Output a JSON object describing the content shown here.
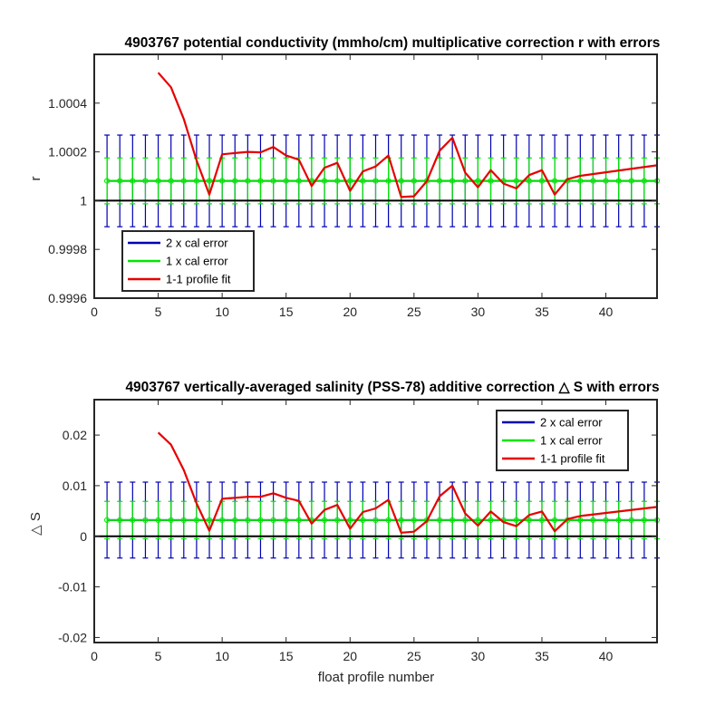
{
  "chart_data": [
    {
      "type": "line",
      "title": "4903767 potential conductivity (mmho/cm) multiplicative correction r with errors",
      "xlabel": "",
      "ylabel": "r",
      "xlim": [
        0,
        44
      ],
      "ylim": [
        0.9996,
        1.0006
      ],
      "xticks": [
        "0",
        "10",
        "15",
        "20",
        "25",
        "30",
        "35",
        "40",
        "5"
      ],
      "xtick_values": [
        0,
        10,
        15,
        20,
        25,
        30,
        35,
        40,
        5
      ],
      "yticks": [
        "0.9996",
        "0.9998",
        "1",
        "1.0002",
        "1.0004"
      ],
      "ytick_values": [
        0.9996,
        0.9998,
        1.0,
        1.0002,
        1.0004
      ],
      "grid": false,
      "legend_position": "bottom-left",
      "reference_line": 1.0,
      "calibration": {
        "profiles": [
          1,
          2,
          3,
          4,
          5,
          6,
          7,
          8,
          9,
          10,
          11,
          12,
          13,
          14,
          15,
          16,
          17,
          18,
          19,
          20,
          21,
          22,
          23,
          24,
          25,
          26,
          27,
          28,
          29,
          30,
          31,
          32,
          33,
          34,
          35,
          36,
          37,
          38,
          39,
          40,
          41,
          42,
          43,
          44
        ],
        "center": 1.000081,
        "err1": 9.4e-05,
        "err2": 0.000188
      },
      "series": [
        {
          "name": "2 x cal error",
          "color": "#0000b3",
          "role": "err2"
        },
        {
          "name": "1 x cal error",
          "color": "#00e600",
          "role": "err1"
        },
        {
          "name": "1-1 profile fit",
          "color": "#e60000",
          "x": [
            5,
            6,
            7,
            8,
            9,
            10,
            11,
            12,
            13,
            14,
            15,
            16,
            17,
            18,
            19,
            20,
            21,
            22,
            23,
            24,
            25,
            26,
            27,
            28,
            29,
            30,
            31,
            32,
            33,
            34,
            35,
            36,
            37,
            38,
            44
          ],
          "y": [
            1.000525,
            1.000465,
            1.000335,
            1.000165,
            1.000025,
            1.00019,
            1.000195,
            1.0002,
            1.000198,
            1.00022,
            1.000185,
            1.000168,
            1.00006,
            1.000135,
            1.000155,
            1.00004,
            1.00012,
            1.00014,
            1.000185,
            1.000015,
            1.000018,
            1.00008,
            1.000205,
            1.000258,
            1.000115,
            1.000055,
            1.000125,
            1.00007,
            1.00005,
            1.000105,
            1.000125,
            1.000025,
            1.000088,
            1.000102,
            1.000145
          ]
        }
      ]
    },
    {
      "type": "line",
      "title": "4903767 vertically-averaged salinity (PSS-78) additive correction △ S with errors",
      "xlabel": "float profile number",
      "ylabel": "△ S",
      "xlim": [
        0,
        44
      ],
      "ylim": [
        -0.021,
        0.027
      ],
      "xticks": [
        "0",
        "5",
        "10",
        "15",
        "20",
        "25",
        "30",
        "35",
        "40"
      ],
      "xtick_values": [
        0,
        5,
        10,
        15,
        20,
        25,
        30,
        35,
        40
      ],
      "yticks": [
        "-0.02",
        "-0.01",
        "0",
        "0.01",
        "0.02"
      ],
      "ytick_values": [
        -0.02,
        -0.01,
        0,
        0.01,
        0.02
      ],
      "grid": false,
      "legend_position": "top-right",
      "reference_line": 0,
      "calibration": {
        "profiles": [
          1,
          2,
          3,
          4,
          5,
          6,
          7,
          8,
          9,
          10,
          11,
          12,
          13,
          14,
          15,
          16,
          17,
          18,
          19,
          20,
          21,
          22,
          23,
          24,
          25,
          26,
          27,
          28,
          29,
          30,
          31,
          32,
          33,
          34,
          35,
          36,
          37,
          38,
          39,
          40,
          41,
          42,
          43,
          44
        ],
        "center": 0.0032,
        "err1": 0.0037,
        "err2": 0.0075
      },
      "series": [
        {
          "name": "2 x cal error",
          "color": "#0000b3",
          "role": "err2"
        },
        {
          "name": "1 x cal error",
          "color": "#00e600",
          "role": "err1"
        },
        {
          "name": "1-1 profile fit",
          "color": "#e60000",
          "x": [
            5,
            6,
            7,
            8,
            9,
            10,
            11,
            12,
            13,
            14,
            15,
            16,
            17,
            18,
            19,
            20,
            21,
            22,
            23,
            24,
            25,
            26,
            27,
            28,
            29,
            30,
            31,
            32,
            33,
            34,
            35,
            36,
            37,
            38,
            44
          ],
          "y": [
            0.0205,
            0.0181,
            0.0131,
            0.0065,
            0.0011,
            0.0074,
            0.0076,
            0.0078,
            0.0078,
            0.0085,
            0.0076,
            0.007,
            0.0025,
            0.0052,
            0.0062,
            0.0015,
            0.0048,
            0.0055,
            0.0072,
            0.0007,
            0.0009,
            0.003,
            0.0079,
            0.01,
            0.0045,
            0.0021,
            0.0049,
            0.0028,
            0.002,
            0.0042,
            0.0049,
            0.001,
            0.0034,
            0.004,
            0.0058
          ]
        }
      ]
    }
  ]
}
